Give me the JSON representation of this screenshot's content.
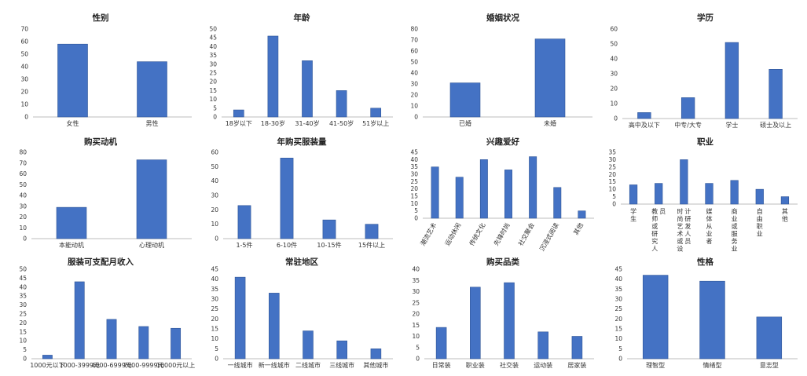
{
  "chart_data": [
    {
      "type": "bar",
      "title": "性别",
      "categories": [
        "女性",
        "男性"
      ],
      "values": [
        58,
        44
      ],
      "ylim": [
        0,
        70
      ],
      "ystep": 10
    },
    {
      "type": "bar",
      "title": "年龄",
      "categories": [
        "18岁以下",
        "18-30岁",
        "31-40岁",
        "41-50岁",
        "51岁以上"
      ],
      "values": [
        4,
        46,
        32,
        15,
        5
      ],
      "ylim": [
        0,
        50
      ],
      "ystep": 5
    },
    {
      "type": "bar",
      "title": "婚姻状况",
      "categories": [
        "已婚",
        "未婚"
      ],
      "values": [
        31,
        71
      ],
      "ylim": [
        0,
        80
      ],
      "ystep": 10
    },
    {
      "type": "bar",
      "title": "学历",
      "categories": [
        "高中及以下",
        "中专/大专",
        "学士",
        "硕士及以上"
      ],
      "values": [
        4,
        14,
        51,
        33
      ],
      "ylim": [
        0,
        60
      ],
      "ystep": 10
    },
    {
      "type": "bar",
      "title": "购买动机",
      "categories": [
        "本能动机",
        "心理动机"
      ],
      "values": [
        29,
        73
      ],
      "ylim": [
        0,
        80
      ],
      "ystep": 10
    },
    {
      "type": "bar",
      "title": "年购买服装量",
      "categories": [
        "1-5件",
        "6-10件",
        "10-15件",
        "15件以上"
      ],
      "values": [
        23,
        56,
        13,
        10
      ],
      "ylim": [
        0,
        60
      ],
      "ystep": 10
    },
    {
      "type": "bar",
      "title": "兴趣爱好",
      "categories": [
        "潮流艺术",
        "运动休闲",
        "传统文化",
        "先锋时尚",
        "社交聚会",
        "沉浸式阅读",
        "其他"
      ],
      "values": [
        35,
        28,
        40,
        33,
        42,
        21,
        5
      ],
      "ylim": [
        0,
        45
      ],
      "ystep": 5,
      "rotated": true
    },
    {
      "type": "bar",
      "title": "职业",
      "categories": [
        "学生",
        "教师或研究人员",
        "时尚艺术或设计研发人员",
        "媒体从业者",
        "商业或服务业",
        "自由职业",
        "其他"
      ],
      "values": [
        13,
        14,
        30,
        14,
        16,
        10,
        5
      ],
      "ylim": [
        0,
        35
      ],
      "ystep": 5,
      "vertical": true
    },
    {
      "type": "bar",
      "title": "服装可支配月收入",
      "categories": [
        "1000元以下",
        "1000-3999元",
        "4000-6999元",
        "7000-9999元",
        "10000元以上"
      ],
      "values": [
        2,
        43,
        22,
        18,
        17
      ],
      "ylim": [
        0,
        50
      ],
      "ystep": 5
    },
    {
      "type": "bar",
      "title": "常驻地区",
      "categories": [
        "一线城市",
        "新一线城市",
        "二线城市",
        "三线城市",
        "其他城市"
      ],
      "values": [
        41,
        33,
        14,
        9,
        5
      ],
      "ylim": [
        0,
        45
      ],
      "ystep": 5
    },
    {
      "type": "bar",
      "title": "购买品类",
      "categories": [
        "日常装",
        "职业装",
        "社交装",
        "运动装",
        "居家装"
      ],
      "values": [
        14,
        32,
        34,
        12,
        10
      ],
      "ylim": [
        0,
        40
      ],
      "ystep": 5
    },
    {
      "type": "bar",
      "title": "性格",
      "categories": [
        "理智型",
        "情绪型",
        "意志型"
      ],
      "values": [
        42,
        39,
        21
      ],
      "ylim": [
        0,
        45
      ],
      "ystep": 5
    }
  ]
}
